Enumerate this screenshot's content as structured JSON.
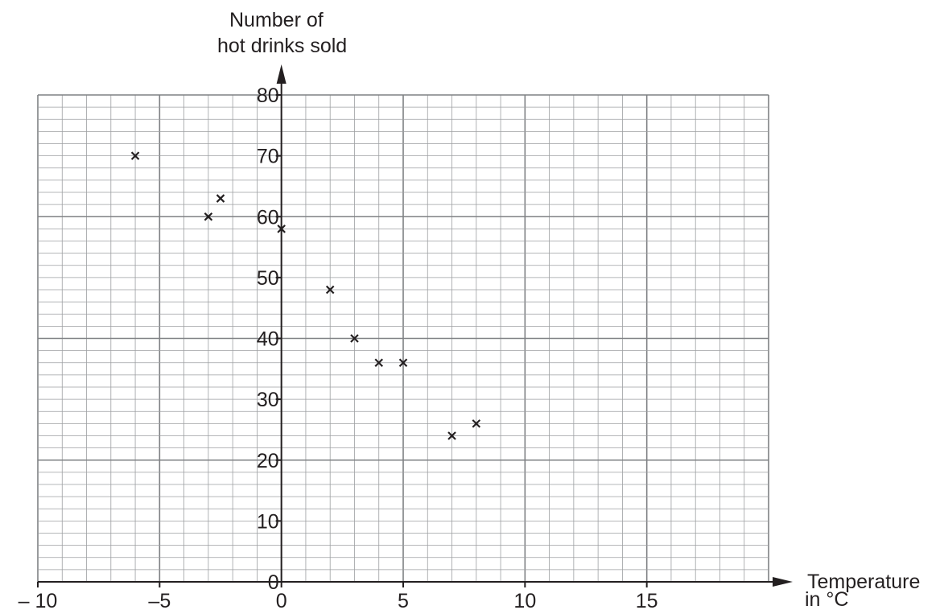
{
  "chart_data": {
    "type": "scatter",
    "title": "",
    "ylabel_lines": [
      "Number of",
      "hot drinks sold"
    ],
    "xlabel_lines": [
      "Temperature",
      "in °C"
    ],
    "xlim": [
      -10,
      20
    ],
    "ylim": [
      0,
      80
    ],
    "grid": true,
    "marker": "×",
    "x_ticks": [
      {
        "value": -10,
        "label": "– 10"
      },
      {
        "value": -5,
        "label": "–5"
      },
      {
        "value": 0,
        "label": "0"
      },
      {
        "value": 5,
        "label": "5"
      },
      {
        "value": 10,
        "label": "10"
      },
      {
        "value": 15,
        "label": "15"
      }
    ],
    "y_ticks": [
      {
        "value": 0,
        "label": "0"
      },
      {
        "value": 10,
        "label": "10"
      },
      {
        "value": 20,
        "label": "20"
      },
      {
        "value": 30,
        "label": "30"
      },
      {
        "value": 40,
        "label": "40"
      },
      {
        "value": 50,
        "label": "50"
      },
      {
        "value": 60,
        "label": "60"
      },
      {
        "value": 70,
        "label": "70"
      },
      {
        "value": 80,
        "label": "80"
      }
    ],
    "points": [
      {
        "x": -6,
        "y": 70
      },
      {
        "x": -3,
        "y": 60
      },
      {
        "x": -2.5,
        "y": 63
      },
      {
        "x": 0,
        "y": 58
      },
      {
        "x": 2,
        "y": 48
      },
      {
        "x": 3,
        "y": 40
      },
      {
        "x": 4,
        "y": 36
      },
      {
        "x": 5,
        "y": 36
      },
      {
        "x": 7,
        "y": 24
      },
      {
        "x": 8,
        "y": 26
      }
    ],
    "colors": {
      "ink": "#231f20",
      "grid_minor": "#9d9fa2",
      "grid_major": "#7f8184"
    }
  }
}
